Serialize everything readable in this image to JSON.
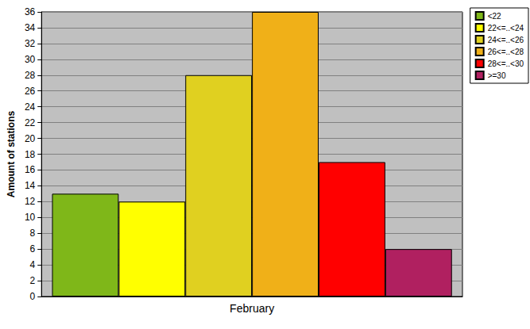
{
  "chart_data": {
    "type": "bar",
    "ylabel": "Amount of stations",
    "categories": [
      "February"
    ],
    "series": [
      {
        "name": "<22",
        "color": "#7fb719",
        "values": [
          13
        ]
      },
      {
        "name": "22<=..<24",
        "color": "#ffff00",
        "values": [
          12
        ]
      },
      {
        "name": "24<=..<26",
        "color": "#e0d020",
        "values": [
          28
        ]
      },
      {
        "name": "26<=..<28",
        "color": "#f0b018",
        "values": [
          36
        ]
      },
      {
        "name": "28<=..<30",
        "color": "#ff0000",
        "values": [
          17
        ]
      },
      {
        "name": ">=30",
        "color": "#b02060",
        "values": [
          6
        ]
      }
    ],
    "ylim": [
      0,
      36
    ],
    "yticks": [
      0,
      2,
      4,
      6,
      8,
      10,
      12,
      14,
      16,
      18,
      20,
      22,
      24,
      26,
      28,
      30,
      32,
      34,
      36
    ],
    "grid": true,
    "legend": "top-right"
  }
}
